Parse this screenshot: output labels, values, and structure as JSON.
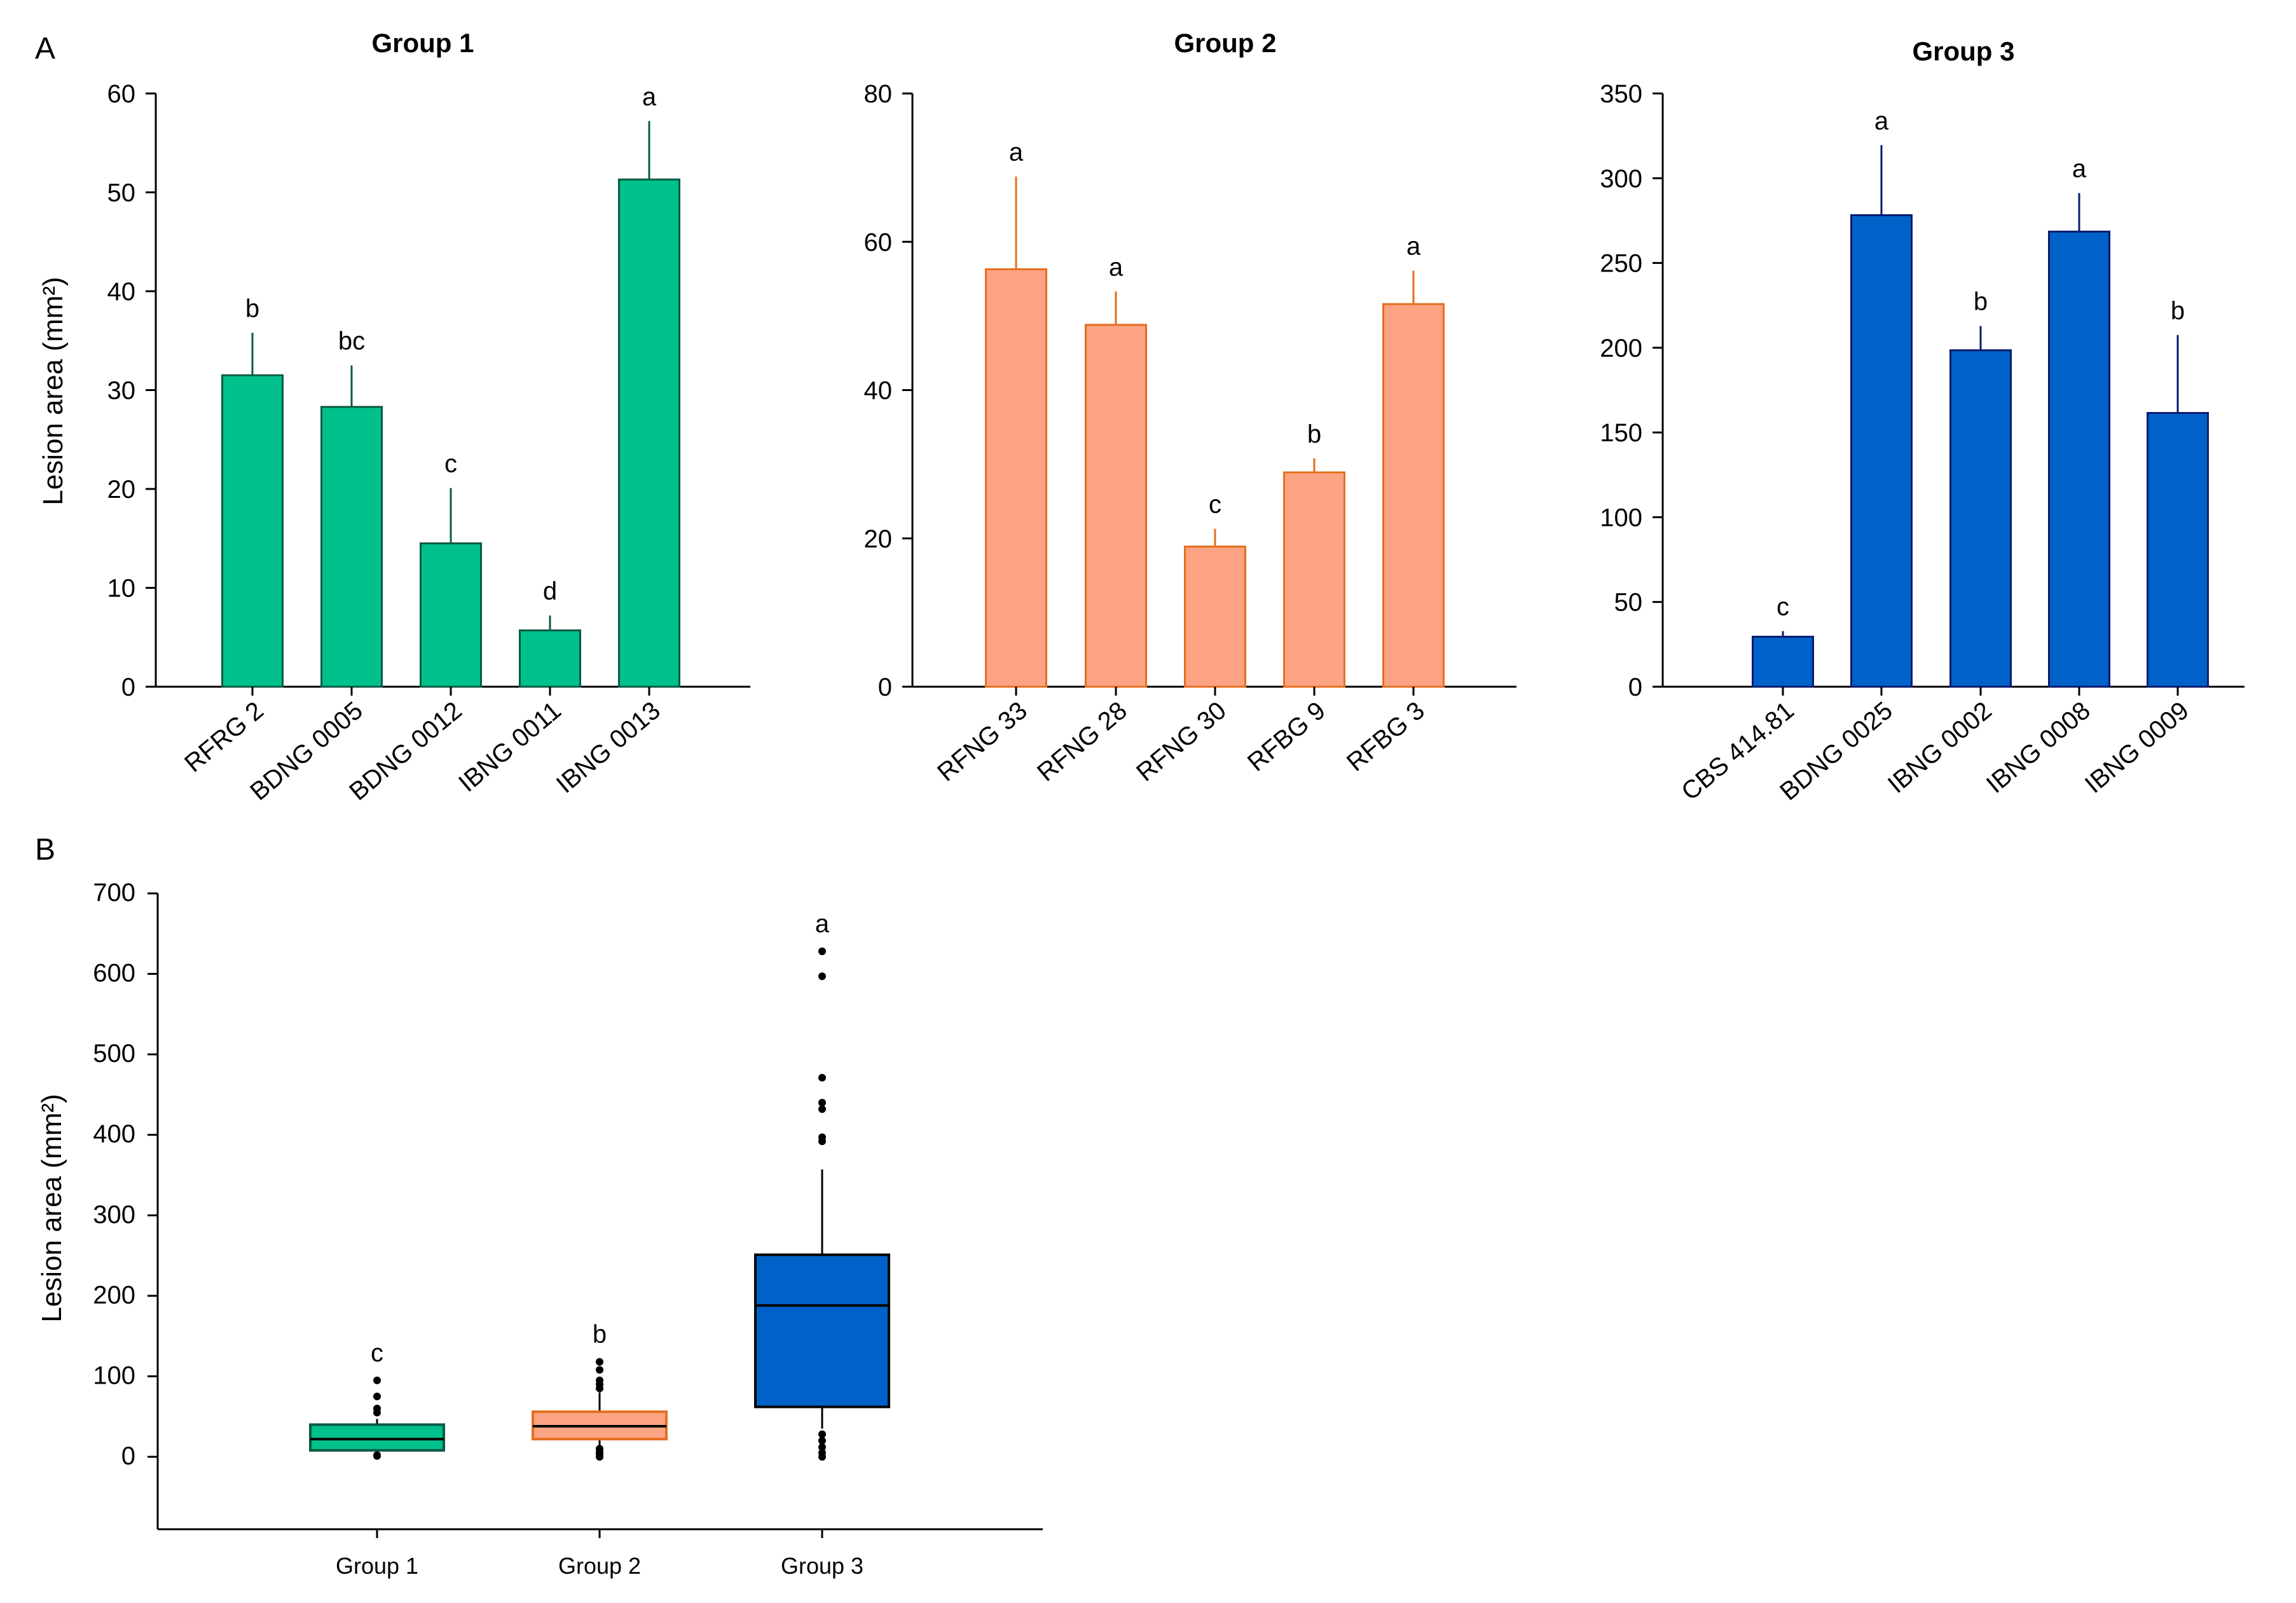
{
  "panel_labels": [
    "A",
    "B"
  ],
  "chart_data": [
    {
      "type": "bar",
      "panel": "A",
      "title": "Group 1",
      "ylabel": "Lesion area (mm²)",
      "ylim": [
        0,
        60
      ],
      "yticks": [
        0,
        10,
        20,
        30,
        40,
        50,
        60
      ],
      "categories": [
        "RFRG 2",
        "BDNG 0005",
        "BDNG 0012",
        "IBNG 0011",
        "IBNG 0013"
      ],
      "values": [
        31.5,
        28.3,
        14.5,
        5.7,
        51.3
      ],
      "error_upper": [
        35.8,
        32.5,
        20.1,
        7.2,
        57.2
      ],
      "letters": [
        "b",
        "bc",
        "c",
        "d",
        "a"
      ],
      "fill_color": "#00c08c",
      "edge_color": "#0b5a44"
    },
    {
      "type": "bar",
      "panel": "A",
      "title": "Group 2",
      "ylabel": "",
      "ylim": [
        0,
        80
      ],
      "yticks": [
        0,
        20,
        40,
        60,
        80
      ],
      "categories": [
        "RFNG 33",
        "RFNG 28",
        "RFNG 30",
        "RFBG 9",
        "RFBG 3"
      ],
      "values": [
        56.3,
        48.8,
        18.9,
        28.9,
        51.6
      ],
      "error_upper": [
        68.8,
        53.3,
        21.3,
        30.8,
        56.1
      ],
      "letters": [
        "a",
        "a",
        "c",
        "b",
        "a"
      ],
      "fill_color": "#fca383",
      "edge_color": "#e46e1e"
    },
    {
      "type": "bar",
      "panel": "A",
      "title": "Group 3",
      "ylabel": "",
      "ylim": [
        0,
        350
      ],
      "yticks": [
        0,
        50,
        100,
        150,
        200,
        250,
        300,
        350
      ],
      "categories": [
        "CBS 414.81",
        "BDNG 0025",
        "IBNG 0002",
        "IBNG 0008",
        "IBNG 0009"
      ],
      "values": [
        29.5,
        278.2,
        198.5,
        268.5,
        161.5
      ],
      "error_upper": [
        32.8,
        319.5,
        212.8,
        291.2,
        207.5
      ],
      "letters": [
        "c",
        "a",
        "b",
        "a",
        "b"
      ],
      "fill_color": "#0062c8",
      "edge_color": "#0a1a6e"
    },
    {
      "type": "box",
      "panel": "B",
      "title": "",
      "ylabel": "Lesion area (mm²)",
      "ylim": [
        -90,
        700
      ],
      "yticks": [
        0,
        100,
        200,
        300,
        400,
        500,
        600,
        700
      ],
      "categories": [
        "Group 1",
        "Group 2",
        "Group 3"
      ],
      "boxes": [
        {
          "q1": 8,
          "median": 22,
          "q3": 40,
          "whisker_low": 2,
          "whisker_high": 47,
          "outliers": [
            1,
            2,
            55,
            60,
            75,
            95
          ],
          "letter": "c",
          "fill_color": "#00c08c",
          "edge_color": "#0b5a44"
        },
        {
          "q1": 22,
          "median": 38,
          "q3": 56,
          "whisker_low": 8,
          "whisker_high": 80,
          "outliers": [
            0,
            3,
            6,
            10,
            85,
            90,
            95,
            108,
            118
          ],
          "letter": "b",
          "fill_color": "#fca383",
          "edge_color": "#e46e1e"
        },
        {
          "q1": 62,
          "median": 188,
          "q3": 251,
          "whisker_low": 35,
          "whisker_high": 357,
          "outliers": [
            0,
            5,
            12,
            20,
            28,
            392,
            397,
            432,
            440,
            471,
            597,
            628
          ],
          "letter": "a",
          "fill_color": "#0062c8",
          "edge_color": "#000000"
        }
      ]
    }
  ]
}
